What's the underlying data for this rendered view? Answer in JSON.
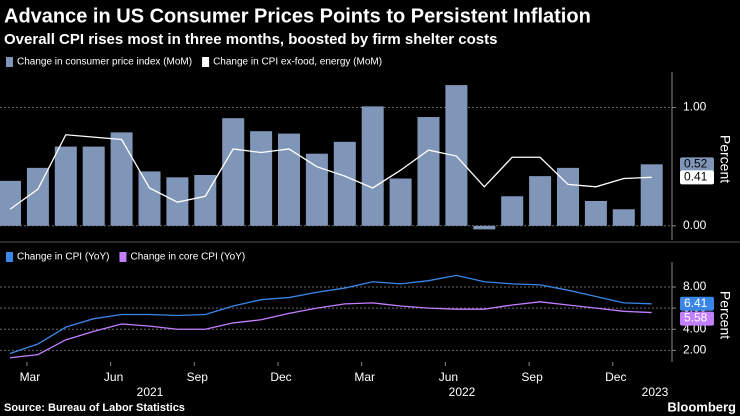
{
  "title": "Advance in US Consumer Prices Points to Persistent Inflation",
  "subtitle": "Overall CPI rises most in three months, boosted by firm shelter costs",
  "source": "Source: Bureau of Labor Statistics",
  "brand": "Bloomberg",
  "chart_data": [
    {
      "type": "bar",
      "y_label": "Percent",
      "series": [
        {
          "name": "Change in consumer price index (MoM)",
          "color": "#8096b8",
          "type": "bar",
          "values": [
            0.38,
            0.49,
            0.67,
            0.67,
            0.79,
            0.46,
            0.41,
            0.43,
            0.91,
            0.8,
            0.78,
            0.61,
            0.71,
            1.01,
            0.4,
            0.92,
            1.19,
            -0.03,
            0.25,
            0.42,
            0.49,
            0.21,
            0.14,
            0.52
          ]
        },
        {
          "name": "Change in CPI ex-food, energy (MoM)",
          "color": "#ffffff",
          "type": "line",
          "values": [
            0.14,
            0.31,
            0.77,
            0.75,
            0.73,
            0.32,
            0.2,
            0.25,
            0.65,
            0.62,
            0.65,
            0.5,
            0.42,
            0.32,
            0.47,
            0.64,
            0.59,
            0.33,
            0.58,
            0.58,
            0.35,
            0.33,
            0.4,
            0.41
          ]
        }
      ],
      "ylim": [
        -0.12,
        1.25
      ],
      "yticks": [
        {
          "value": 0,
          "label": "0.00"
        },
        {
          "value": 1,
          "label": "1.00"
        }
      ]
    },
    {
      "type": "line",
      "y_label": "Percent",
      "categories": [
        null,
        "Mar",
        null,
        null,
        "Jun",
        null,
        null,
        "Sep",
        null,
        null,
        "Dec",
        null,
        null,
        "Mar",
        null,
        null,
        "Jun",
        null,
        null,
        "Sep",
        null,
        null,
        "Dec",
        null
      ],
      "years": [
        "2021",
        "2022",
        "2023"
      ],
      "series": [
        {
          "name": "Change in CPI (YoY)",
          "color": "#3a86e8",
          "values": [
            1.7,
            2.6,
            4.2,
            5.0,
            5.4,
            5.4,
            5.3,
            5.4,
            6.2,
            6.8,
            7.0,
            7.5,
            7.9,
            8.5,
            8.3,
            8.6,
            9.1,
            8.5,
            8.3,
            8.2,
            7.7,
            7.1,
            6.5,
            6.41
          ]
        },
        {
          "name": "Change in core CPI (YoY)",
          "color": "#c27fff",
          "values": [
            1.3,
            1.6,
            3.0,
            3.8,
            4.5,
            4.3,
            4.0,
            4.0,
            4.6,
            4.9,
            5.5,
            6.0,
            6.4,
            6.5,
            6.2,
            6.0,
            5.9,
            5.9,
            6.3,
            6.6,
            6.3,
            6.0,
            5.7,
            5.58
          ]
        }
      ],
      "ylim": [
        0.9,
        9.8
      ],
      "yticks": [
        {
          "value": 2,
          "label": "2.00"
        },
        {
          "value": 4,
          "label": "4.00"
        },
        {
          "value": 6,
          "label": "6.00"
        },
        {
          "value": 8,
          "label": "8.00"
        }
      ]
    }
  ]
}
